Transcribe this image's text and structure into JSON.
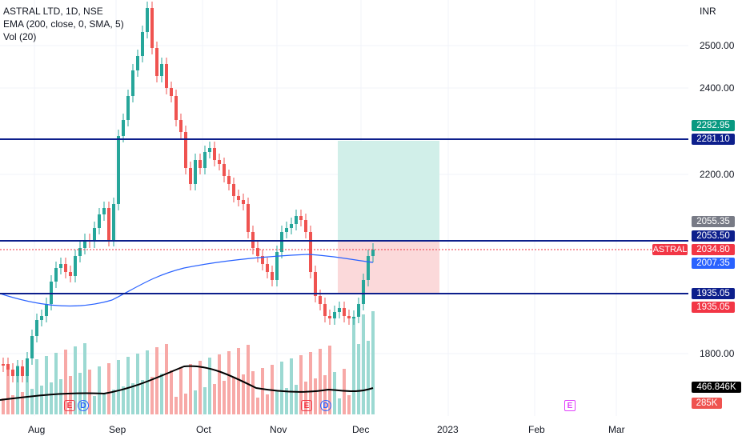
{
  "legend": {
    "symbol_line": "ASTRAL LTD, 1D, NSE",
    "ema_line": "EMA (200, close, 0, SMA, 5)",
    "vol_line": "Vol (20)"
  },
  "price_scale": {
    "currency": "INR",
    "ticks": [
      "2500.00",
      "2400.00",
      "2200.00",
      "1800.00"
    ],
    "tags": {
      "target": "2282.95",
      "line_top": "2281.10",
      "high_box": "2055.35",
      "line_mid": "2053.50",
      "last_price": "2034.80",
      "ema": "2007.35",
      "line_low": "1935.05",
      "stop": "1935.05",
      "vol_avg": "466.846K",
      "vol": "285K"
    },
    "symbol": "ASTRAL"
  },
  "time_scale": {
    "labels": [
      "Aug",
      "Sep",
      "Oct",
      "Nov",
      "Dec",
      "2023",
      "Feb",
      "Mar"
    ]
  },
  "events": {
    "earnings": "E",
    "dividend": "D",
    "future_earnings": "E"
  },
  "colors": {
    "up": "#26a69a",
    "down": "#ef5350",
    "line": "#0d1f8c",
    "ema": "#2962ff",
    "target_zone": "#d1efe9",
    "stop_zone": "#fbd9da"
  },
  "chart_data": {
    "type": "candlestick",
    "levels": [
      2281.1,
      2053.5,
      1935.05
    ],
    "position": {
      "entry": 2053.5,
      "target": 2282.95,
      "stop": 1935.05
    },
    "last_price": 2034.8,
    "ema_value": 2007.35
  }
}
